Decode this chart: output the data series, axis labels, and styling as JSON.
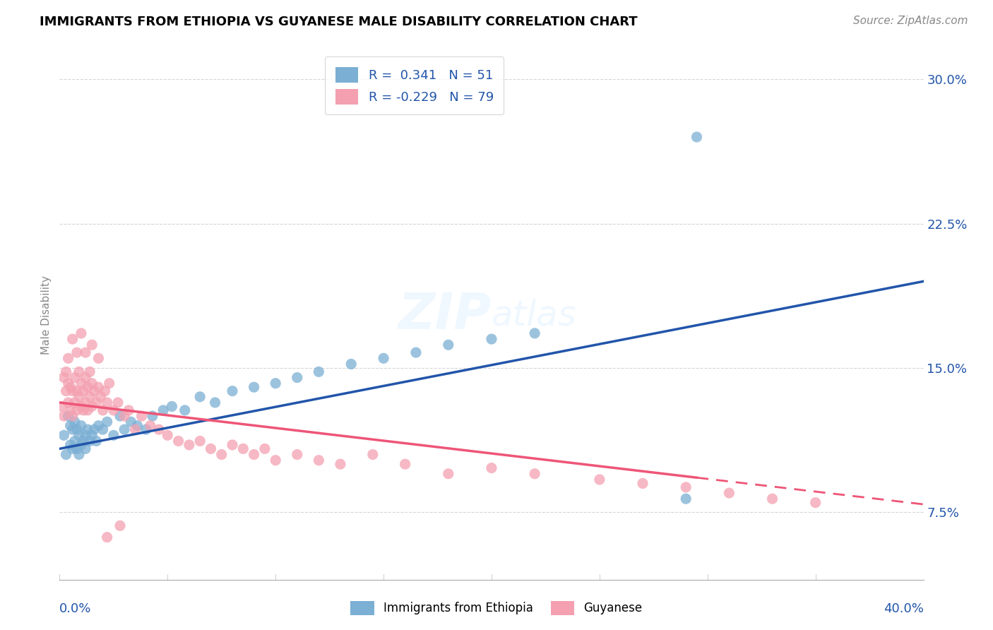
{
  "title": "IMMIGRANTS FROM ETHIOPIA VS GUYANESE MALE DISABILITY CORRELATION CHART",
  "source": "Source: ZipAtlas.com",
  "ylabel": "Male Disability",
  "y_tick_labels": [
    "7.5%",
    "15.0%",
    "22.5%",
    "30.0%"
  ],
  "y_tick_values": [
    0.075,
    0.15,
    0.225,
    0.3
  ],
  "xmin": 0.0,
  "xmax": 0.4,
  "ymin": 0.04,
  "ymax": 0.315,
  "r1": 0.341,
  "n1": 51,
  "r2": -0.229,
  "n2": 79,
  "color_blue": "#7BAFD4",
  "color_pink": "#F4A0B0",
  "line_blue": "#2255AA",
  "line_pink": "#EE5577",
  "legend_label1": "Immigrants from Ethiopia",
  "legend_label2": "Guyanese",
  "blue_scatter_x": [
    0.002,
    0.003,
    0.004,
    0.005,
    0.005,
    0.006,
    0.006,
    0.007,
    0.007,
    0.008,
    0.008,
    0.009,
    0.009,
    0.01,
    0.01,
    0.011,
    0.012,
    0.012,
    0.013,
    0.014,
    0.015,
    0.016,
    0.017,
    0.018,
    0.02,
    0.022,
    0.025,
    0.028,
    0.03,
    0.033,
    0.036,
    0.04,
    0.043,
    0.048,
    0.052,
    0.058,
    0.065,
    0.072,
    0.08,
    0.09,
    0.1,
    0.11,
    0.12,
    0.135,
    0.15,
    0.165,
    0.18,
    0.2,
    0.22,
    0.295,
    0.29
  ],
  "blue_scatter_y": [
    0.115,
    0.105,
    0.125,
    0.11,
    0.12,
    0.108,
    0.118,
    0.112,
    0.122,
    0.108,
    0.118,
    0.105,
    0.115,
    0.11,
    0.12,
    0.112,
    0.115,
    0.108,
    0.118,
    0.112,
    0.115,
    0.118,
    0.112,
    0.12,
    0.118,
    0.122,
    0.115,
    0.125,
    0.118,
    0.122,
    0.12,
    0.118,
    0.125,
    0.128,
    0.13,
    0.128,
    0.135,
    0.132,
    0.138,
    0.14,
    0.142,
    0.145,
    0.148,
    0.152,
    0.155,
    0.158,
    0.162,
    0.165,
    0.168,
    0.27,
    0.082
  ],
  "pink_scatter_x": [
    0.001,
    0.002,
    0.002,
    0.003,
    0.003,
    0.004,
    0.004,
    0.005,
    0.005,
    0.006,
    0.006,
    0.007,
    0.007,
    0.008,
    0.008,
    0.009,
    0.009,
    0.01,
    0.01,
    0.011,
    0.011,
    0.012,
    0.012,
    0.013,
    0.013,
    0.014,
    0.014,
    0.015,
    0.015,
    0.016,
    0.017,
    0.018,
    0.019,
    0.02,
    0.021,
    0.022,
    0.023,
    0.025,
    0.027,
    0.03,
    0.032,
    0.035,
    0.038,
    0.042,
    0.046,
    0.05,
    0.055,
    0.06,
    0.065,
    0.07,
    0.075,
    0.08,
    0.085,
    0.09,
    0.095,
    0.1,
    0.11,
    0.12,
    0.13,
    0.145,
    0.16,
    0.18,
    0.2,
    0.22,
    0.25,
    0.27,
    0.29,
    0.31,
    0.33,
    0.35,
    0.004,
    0.006,
    0.008,
    0.01,
    0.012,
    0.015,
    0.018,
    0.022,
    0.028
  ],
  "pink_scatter_y": [
    0.13,
    0.145,
    0.125,
    0.138,
    0.148,
    0.132,
    0.142,
    0.128,
    0.14,
    0.125,
    0.138,
    0.132,
    0.145,
    0.128,
    0.138,
    0.135,
    0.148,
    0.13,
    0.142,
    0.128,
    0.138,
    0.132,
    0.145,
    0.128,
    0.14,
    0.135,
    0.148,
    0.13,
    0.142,
    0.138,
    0.132,
    0.14,
    0.135,
    0.128,
    0.138,
    0.132,
    0.142,
    0.128,
    0.132,
    0.125,
    0.128,
    0.118,
    0.125,
    0.12,
    0.118,
    0.115,
    0.112,
    0.11,
    0.112,
    0.108,
    0.105,
    0.11,
    0.108,
    0.105,
    0.108,
    0.102,
    0.105,
    0.102,
    0.1,
    0.105,
    0.1,
    0.095,
    0.098,
    0.095,
    0.092,
    0.09,
    0.088,
    0.085,
    0.082,
    0.08,
    0.155,
    0.165,
    0.158,
    0.168,
    0.158,
    0.162,
    0.155,
    0.062,
    0.068
  ]
}
